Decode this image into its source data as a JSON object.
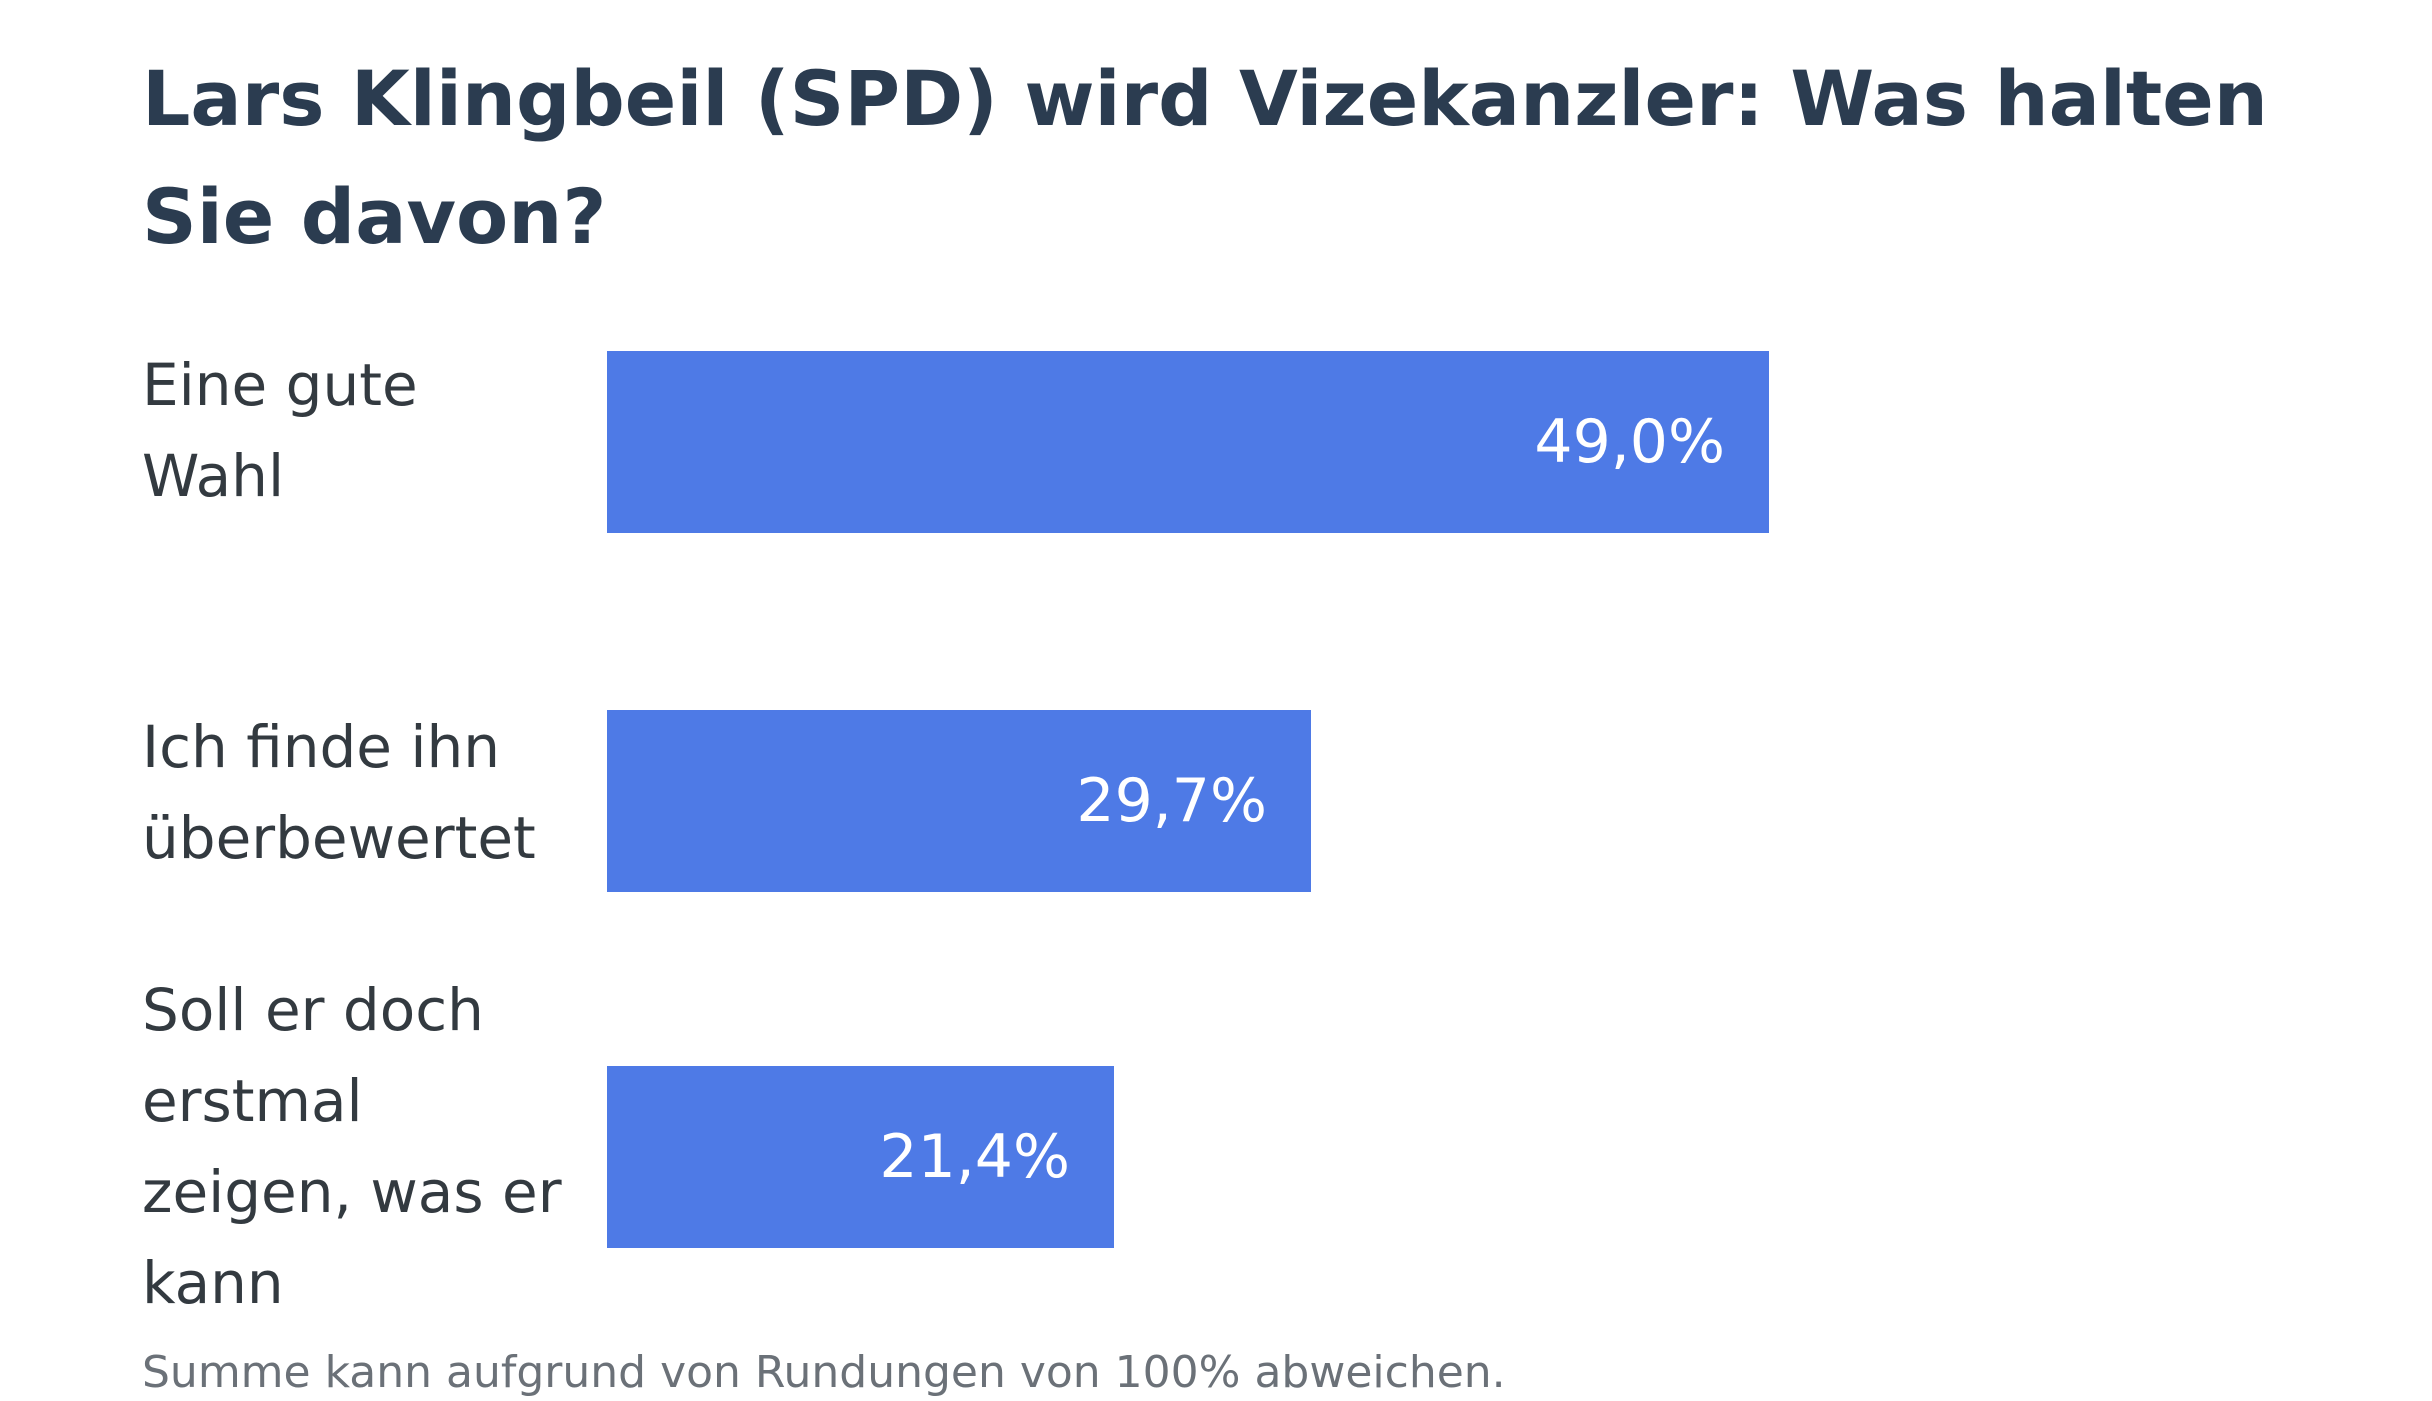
{
  "chart_data": {
    "type": "bar",
    "orientation": "horizontal",
    "title": "Lars Klingbeil (SPD) wird Vizekanzler: Was halten Sie davon?",
    "categories": [
      "Eine gute Wahl",
      "Ich finde ihn überbewertet",
      "Soll er doch erstmal zeigen, was er kann"
    ],
    "values": [
      49.0,
      29.7,
      21.4
    ],
    "value_labels": [
      "49,0%",
      "29,7%",
      "21,4%"
    ],
    "unit": "%",
    "xlim": [
      0,
      100
    ],
    "grid": false,
    "bar_color": "#4e7ae6",
    "footnote": "Summe kann aufgrund von Rundungen von 100% abweichen."
  },
  "colors": {
    "title": "#2b3c50",
    "label": "#333a40",
    "bar": "#4e7ae6",
    "value_text": "#ffffff",
    "footnote": "#6b7178"
  }
}
